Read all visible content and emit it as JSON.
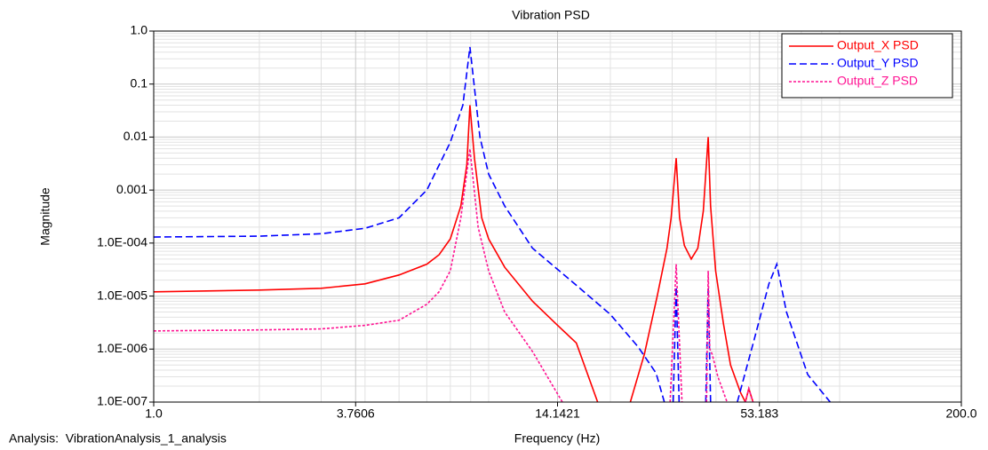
{
  "chart_data": {
    "type": "line",
    "title": "Vibration PSD",
    "x_label": "Frequency (Hz)",
    "y_label": "Magnitude",
    "footer": "Analysis:  VibrationAnalysis_1_analysis",
    "xlog": true,
    "ylog": true,
    "grid": true,
    "minor_grid": true,
    "legend": "upper right",
    "xlim": [
      1,
      200
    ],
    "ylim": [
      1e-07,
      1
    ],
    "xticks": [
      {
        "value": 1,
        "label": "1.0"
      },
      3.7606,
      14.1421,
      53.183,
      {
        "value": 200,
        "label": "200.0"
      }
    ],
    "yticks": [
      {
        "value": 1e-07,
        "label": "1.0E-007"
      },
      {
        "value": 1e-06,
        "label": "1.0E-006"
      },
      {
        "value": 1e-05,
        "label": "1.0E-005"
      },
      {
        "value": 0.0001,
        "label": "1.0E-004"
      },
      0.001,
      0.01,
      0.1,
      {
        "value": 1,
        "label": "1.0"
      }
    ],
    "series": [
      {
        "name": "Output_X PSD",
        "color": "#ff0000",
        "linestyle": "solid",
        "x": [
          1,
          2,
          3,
          4,
          5,
          6,
          6.5,
          7,
          7.5,
          7.8,
          7.96,
          8.2,
          8.6,
          9,
          10,
          12,
          14,
          16,
          18.4,
          20,
          22.8,
          25,
          27.2,
          29,
          29.8,
          30.8,
          31.5,
          32.5,
          34,
          35.5,
          36.8,
          38,
          38.6,
          39.9,
          42,
          44,
          47,
          48.5,
          49.6,
          51
        ],
        "values": [
          1.2e-05,
          1.3e-05,
          1.4e-05,
          1.7e-05,
          2.5e-05,
          4e-05,
          6e-05,
          0.00012,
          0.0005,
          0.003,
          0.04,
          0.004,
          0.0003,
          0.00012,
          3.5e-05,
          8e-06,
          3e-06,
          1.3e-06,
          1e-07,
          null,
          1e-07,
          8e-07,
          1e-05,
          8e-05,
          0.0003,
          0.004,
          0.0003,
          9e-05,
          5e-05,
          8e-05,
          0.0004,
          0.01,
          0.0005,
          3e-05,
          3e-06,
          5e-07,
          1.5e-07,
          1e-07,
          1.8e-07,
          1e-07
        ]
      },
      {
        "name": "Output_Y PSD",
        "color": "#0000ff",
        "linestyle": "dashed",
        "x": [
          1,
          2,
          3,
          4,
          5,
          6,
          7,
          7.6,
          7.96,
          8.5,
          9,
          10,
          12,
          16,
          20,
          24,
          27,
          28.5,
          29.5,
          30.2,
          30.8,
          31.4,
          33,
          37.4,
          38,
          38.6,
          40,
          46,
          51.5,
          56.6,
          59.6,
          63.5,
          73,
          84.6
        ],
        "values": [
          0.00013,
          0.000135,
          0.00015,
          0.00019,
          0.0003,
          0.001,
          0.008,
          0.04,
          0.5,
          0.01,
          0.002,
          0.0005,
          8e-05,
          1.6e-05,
          4.5e-06,
          1.1e-06,
          3.5e-07,
          1e-07,
          null,
          1e-07,
          1.5e-05,
          1e-07,
          null,
          1e-07,
          1.5e-05,
          1e-07,
          null,
          1e-07,
          1.6e-06,
          1.7e-05,
          4e-05,
          5e-06,
          3.3e-07,
          1e-07
        ]
      },
      {
        "name": "Output_Z PSD",
        "color": "#ff1493",
        "linestyle": "dotted",
        "x": [
          1,
          2,
          3,
          4,
          5,
          6,
          6.5,
          7,
          7.5,
          7.96,
          8.4,
          9,
          10,
          12,
          14.6,
          20,
          29.6,
          30.8,
          32,
          35,
          37.6,
          38,
          38.4,
          39,
          40.5,
          43,
          45,
          48.5,
          49.6,
          51
        ],
        "values": [
          2.2e-06,
          2.3e-06,
          2.4e-06,
          2.8e-06,
          3.5e-06,
          7e-06,
          1.2e-05,
          3e-05,
          0.0003,
          0.006,
          0.0002,
          3e-05,
          5e-06,
          9e-07,
          1e-07,
          null,
          1e-07,
          4e-05,
          1e-07,
          null,
          1e-07,
          3e-05,
          1e-06,
          8e-07,
          3e-07,
          1e-07,
          null,
          1e-07,
          1.8e-07,
          1e-07
        ]
      }
    ]
  }
}
